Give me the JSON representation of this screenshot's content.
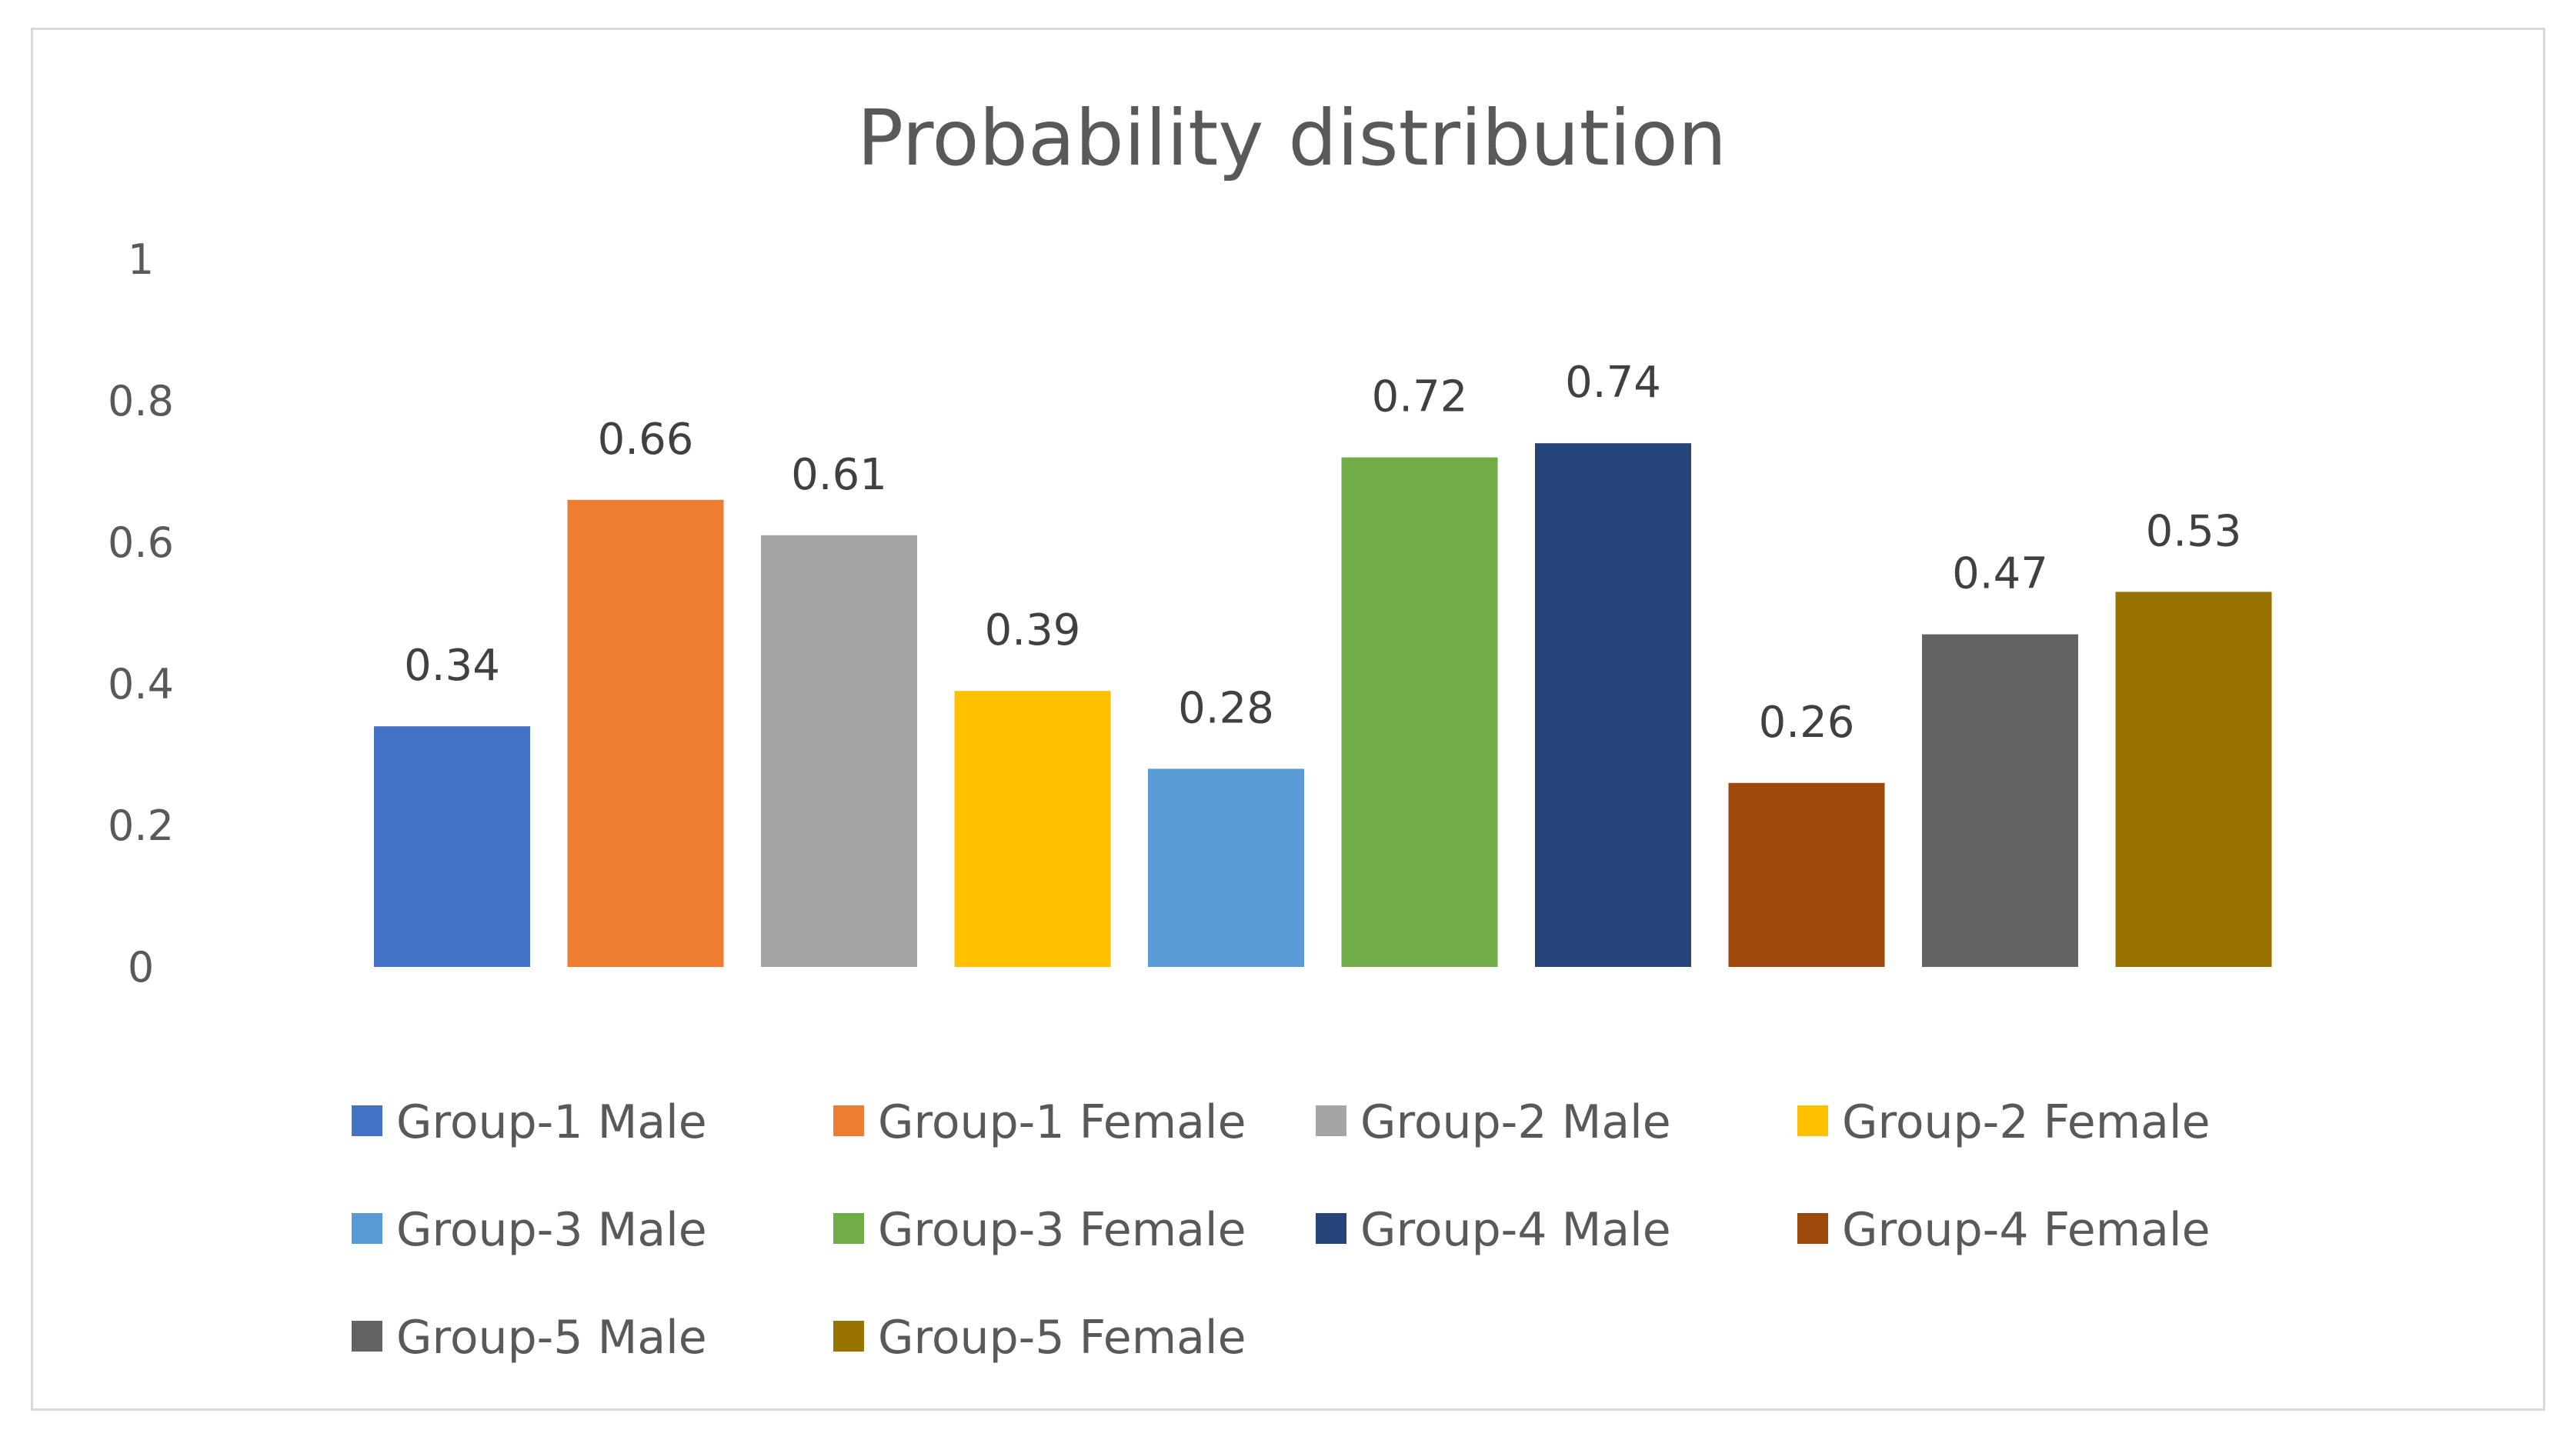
{
  "chart_data": {
    "type": "bar",
    "title": "Probability distribution",
    "xlabel": "",
    "ylabel": "",
    "ylim": [
      0,
      1
    ],
    "yticks": [
      0,
      0.2,
      0.4,
      0.6,
      0.8,
      1
    ],
    "ytick_labels": [
      "0",
      "0.2",
      "0.4",
      "0.6",
      "0.8",
      "1"
    ],
    "grid": false,
    "legend_position": "bottom",
    "series": [
      {
        "name": "Group-1 Male",
        "value": 0.34,
        "label": "0.34",
        "color": "#4472C4"
      },
      {
        "name": "Group-1 Female",
        "value": 0.66,
        "label": "0.66",
        "color": "#ED7D31"
      },
      {
        "name": "Group-2 Male",
        "value": 0.61,
        "label": "0.61",
        "color": "#A5A5A5"
      },
      {
        "name": "Group-2 Female",
        "value": 0.39,
        "label": "0.39",
        "color": "#FFC000"
      },
      {
        "name": "Group-3 Male",
        "value": 0.28,
        "label": "0.28",
        "color": "#5B9BD5"
      },
      {
        "name": "Group-3 Female",
        "value": 0.72,
        "label": "0.72",
        "color": "#70AD47"
      },
      {
        "name": "Group-4 Male",
        "value": 0.74,
        "label": "0.74",
        "color": "#264478"
      },
      {
        "name": "Group-4 Female",
        "value": 0.26,
        "label": "0.26",
        "color": "#9E480E"
      },
      {
        "name": "Group-5 Male",
        "value": 0.47,
        "label": "0.47",
        "color": "#636363"
      },
      {
        "name": "Group-5 Female",
        "value": 0.53,
        "label": "0.53",
        "color": "#997300"
      }
    ]
  }
}
